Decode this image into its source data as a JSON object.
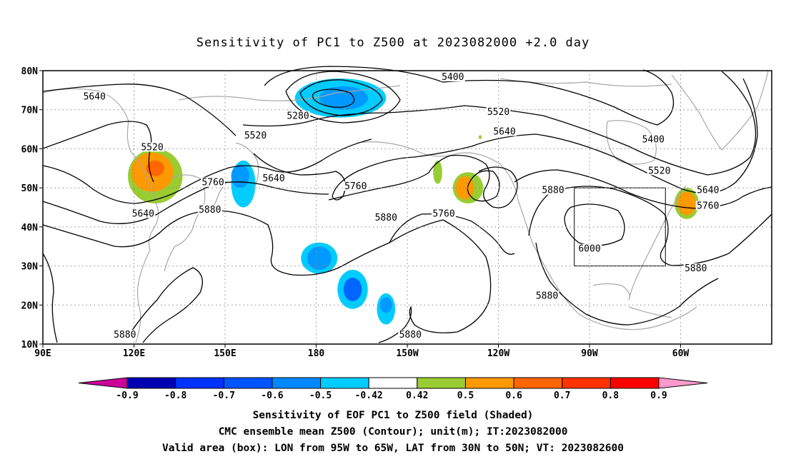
{
  "title": "Sensitivity of PC1 to Z500 at 2023082000 +2.0 day",
  "map": {
    "lat_range": [
      10,
      80
    ],
    "lon_range": [
      90,
      330
    ],
    "lat_ticks": [
      "80N",
      "70N",
      "60N",
      "50N",
      "40N",
      "30N",
      "20N",
      "10N"
    ],
    "lon_ticks": [
      "90E",
      "120E",
      "150E",
      "180",
      "150W",
      "120W",
      "90W",
      "60W"
    ],
    "valid_box": {
      "lon": [
        265,
        295
      ],
      "lat": [
        30,
        50
      ]
    },
    "contour_labels": [
      {
        "text": "5640",
        "lon": 107,
        "lat": 73
      },
      {
        "text": "5520",
        "lon": 126,
        "lat": 60
      },
      {
        "text": "5280",
        "lon": 174,
        "lat": 68
      },
      {
        "text": "5520",
        "lon": 160,
        "lat": 63
      },
      {
        "text": "5640",
        "lon": 166,
        "lat": 52
      },
      {
        "text": "5760",
        "lon": 146,
        "lat": 51
      },
      {
        "text": "5640",
        "lon": 123,
        "lat": 43
      },
      {
        "text": "5880",
        "lon": 145,
        "lat": 44
      },
      {
        "text": "5400",
        "lon": 225,
        "lat": 78
      },
      {
        "text": "5520",
        "lon": 240,
        "lat": 69
      },
      {
        "text": "5640",
        "lon": 242,
        "lat": 64
      },
      {
        "text": "5400",
        "lon": 291,
        "lat": 62
      },
      {
        "text": "5520",
        "lon": 293,
        "lat": 54
      },
      {
        "text": "5640",
        "lon": 309,
        "lat": 49
      },
      {
        "text": "5760",
        "lon": 309,
        "lat": 45
      },
      {
        "text": "5760",
        "lon": 193,
        "lat": 50
      },
      {
        "text": "5880",
        "lon": 203,
        "lat": 42
      },
      {
        "text": "5760",
        "lon": 222,
        "lat": 43
      },
      {
        "text": "5880",
        "lon": 258,
        "lat": 49
      },
      {
        "text": "6000",
        "lon": 270,
        "lat": 34
      },
      {
        "text": "5880",
        "lon": 305,
        "lat": 29
      },
      {
        "text": "5880",
        "lon": 256,
        "lat": 22
      },
      {
        "text": "5880",
        "lon": 117,
        "lat": 12
      },
      {
        "text": "5880",
        "lon": 211,
        "lat": 12
      }
    ],
    "shaded_regions": [
      {
        "level": 0.5,
        "color": "#99cc33",
        "lon": 127,
        "lat": 53,
        "rlon": 9,
        "rlat": 7
      },
      {
        "level": 0.6,
        "color": "#ff9900",
        "lon": 126,
        "lat": 54,
        "rlon": 7,
        "rlat": 5
      },
      {
        "level": 0.7,
        "color": "#ff6600",
        "lon": 127,
        "lat": 55,
        "rlon": 3,
        "rlat": 2
      },
      {
        "level": -0.5,
        "color": "#00ccff",
        "lon": 156,
        "lat": 51,
        "rlon": 4,
        "rlat": 6
      },
      {
        "level": -0.6,
        "color": "#0099ff",
        "lon": 155,
        "lat": 53,
        "rlon": 3,
        "rlat": 3
      },
      {
        "level": -0.5,
        "color": "#00ccff",
        "lon": 188,
        "lat": 73,
        "rlon": 15,
        "rlat": 5
      },
      {
        "level": -0.6,
        "color": "#0099ff",
        "lon": 189,
        "lat": 73,
        "rlon": 8,
        "rlat": 3
      },
      {
        "level": -0.5,
        "color": "#00ccff",
        "lon": 181,
        "lat": 32,
        "rlon": 6,
        "rlat": 4
      },
      {
        "level": -0.6,
        "color": "#0099ff",
        "lon": 181,
        "lat": 32,
        "rlon": 4,
        "rlat": 3
      },
      {
        "level": -0.5,
        "color": "#00ccff",
        "lon": 192,
        "lat": 24,
        "rlon": 5,
        "rlat": 5
      },
      {
        "level": -0.7,
        "color": "#0066ff",
        "lon": 192,
        "lat": 24,
        "rlon": 3,
        "rlat": 3
      },
      {
        "level": -0.5,
        "color": "#00ccff",
        "lon": 203,
        "lat": 19,
        "rlon": 3,
        "rlat": 4
      },
      {
        "level": -0.6,
        "color": "#0099ff",
        "lon": 203,
        "lat": 20,
        "rlon": 2,
        "rlat": 2
      },
      {
        "level": 0.5,
        "color": "#99cc33",
        "lon": 230,
        "lat": 50,
        "rlon": 5,
        "rlat": 4
      },
      {
        "level": 0.6,
        "color": "#ff9900",
        "lon": 229,
        "lat": 50,
        "rlon": 3,
        "rlat": 3
      },
      {
        "level": 0.5,
        "color": "#99cc33",
        "lon": 302,
        "lat": 46,
        "rlon": 4,
        "rlat": 4
      },
      {
        "level": 0.6,
        "color": "#ff9900",
        "lon": 302,
        "lat": 46,
        "rlon": 3,
        "rlat": 3
      },
      {
        "level": 0.5,
        "color": "#99cc33",
        "lon": 220,
        "lat": 54,
        "rlon": 1.5,
        "rlat": 3
      },
      {
        "level": 0.5,
        "color": "#99cc33",
        "lon": 234,
        "lat": 63,
        "rlon": 0.5,
        "rlat": 0.5
      }
    ]
  },
  "colorbar": {
    "colors": [
      "#cc0099",
      "#0000b3",
      "#0033ff",
      "#0055ff",
      "#0088ff",
      "#00ccff",
      "#ffffff",
      "#99cc33",
      "#ff9900",
      "#ff6600",
      "#ff3300",
      "#ff0000",
      "#ff99cc"
    ],
    "labels": [
      "-0.9",
      "-0.8",
      "-0.7",
      "-0.6",
      "-0.5",
      "-0.42",
      "0.42",
      "0.5",
      "0.6",
      "0.7",
      "0.8",
      "0.9"
    ]
  },
  "footer": {
    "line1": "Sensitivity of EOF PC1 to Z500 field (Shaded)",
    "line2": "CMC ensemble mean Z500 (Contour); unit(m); IT:2023082000",
    "line3": "Valid area (box): LON from 95W to 65W, LAT from 30N to 50N; VT: 2023082600"
  }
}
